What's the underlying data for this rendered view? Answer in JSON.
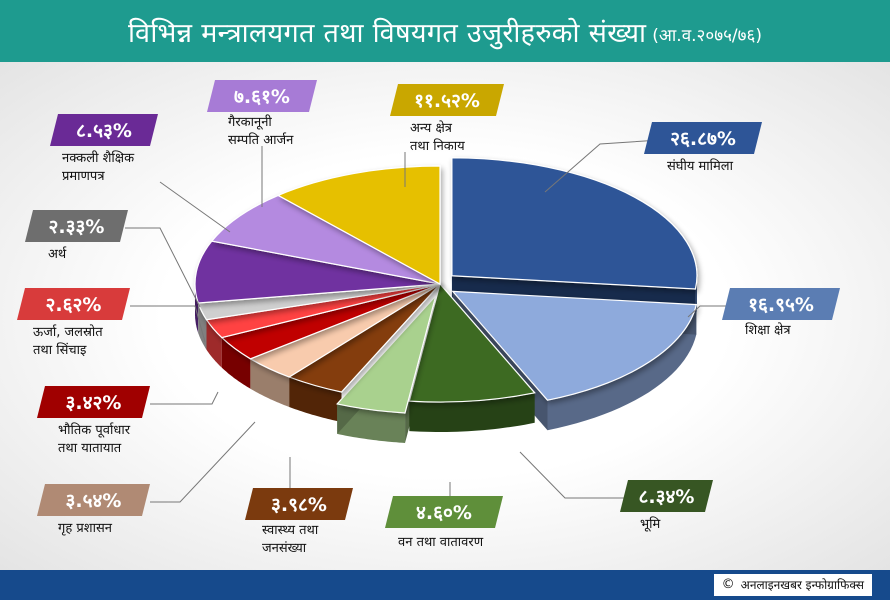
{
  "header": {
    "title": "विभिन्न मन्त्रालयगत तथा विषयगत उजुरीहरुको संख्या",
    "subtitle": "(आ.व.२०७५/७६)"
  },
  "footer": {
    "credit": "अनलाइनखबर इन्फोग्राफिक्स"
  },
  "colors": {
    "header_bg": "#1e9b8f",
    "footer_bg": "#164a8c"
  },
  "chart_data": {
    "type": "pie",
    "title": "विभिन्न मन्त्रालयगत तथा विषयगत उजुरीहरुको संख्या (आ.व.२०७५/७६)",
    "slices": [
      {
        "label": "संघीय मामिला",
        "label_lines": [
          "संघीय मामिला"
        ],
        "value": 26.87,
        "value_label": "२६.८७%",
        "color": "#2e5597",
        "exploded": true
      },
      {
        "label": "शिक्षा क्षेत्र",
        "label_lines": [
          "शिक्षा क्षेत्र"
        ],
        "value": 16.95,
        "value_label": "१६.९५%",
        "color": "#8eaadc",
        "exploded": true
      },
      {
        "label": "भूमि",
        "label_lines": [
          "भूमि"
        ],
        "value": 8.34,
        "value_label": "८.३४%",
        "color": "#3d6b23",
        "exploded": false
      },
      {
        "label": "वन तथा वातावरण",
        "label_lines": [
          "वन तथा वातावरण"
        ],
        "value": 4.6,
        "value_label": "४.६०%",
        "color": "#a9d18e",
        "exploded": true
      },
      {
        "label": "स्वास्थ्य तथा जनसंख्या",
        "label_lines": [
          "स्वास्थ्य तथा",
          "जनसंख्या"
        ],
        "value": 3.98,
        "value_label": "३.९८%",
        "color": "#843c0c",
        "exploded": false
      },
      {
        "label": "गृह प्रशासन",
        "label_lines": [
          "गृह प्रशासन"
        ],
        "value": 3.54,
        "value_label": "३.५४%",
        "color": "#f8cbad",
        "exploded": false
      },
      {
        "label": "भौतिक पूर्वाधार तथा यातायात",
        "label_lines": [
          "भौतिक पूर्वाधार",
          "तथा यातायात"
        ],
        "value": 3.42,
        "value_label": "३.४२%",
        "color": "#c00000",
        "exploded": false
      },
      {
        "label": "ऊर्जा, जलस्रोत तथा सिंचाइ",
        "label_lines": [
          "ऊर्जा, जलस्रोत",
          "तथा सिंचाइ"
        ],
        "value": 2.62,
        "value_label": "२.६२%",
        "color": "#ff4343",
        "exploded": false
      },
      {
        "label": "अर्थ",
        "label_lines": [
          "अर्थ"
        ],
        "value": 2.33,
        "value_label": "२.३३%",
        "color": "#cfcfcf",
        "exploded": false
      },
      {
        "label": "नक्कली शैक्षिक प्रमाणपत्र",
        "label_lines": [
          "नक्कली शैक्षिक",
          "प्रमाणपत्र"
        ],
        "value": 8.53,
        "value_label": "८.५३%",
        "color": "#7030a0",
        "exploded": false
      },
      {
        "label": "गैरकानूनी सम्पति आर्जन",
        "label_lines": [
          "गैरकानूनी",
          "सम्पति आर्जन"
        ],
        "value": 7.61,
        "value_label": "७.६१%",
        "color": "#b48ae0",
        "exploded": false
      },
      {
        "label": "अन्य क्षेत्र तथा निकाय",
        "label_lines": [
          "अन्य क्षेत्र",
          "तथा निकाय"
        ],
        "value": 11.52,
        "value_label": "११.५२%",
        "color": "#e6c000",
        "exploded": false
      }
    ],
    "start": "top, clockwise",
    "label_box_colors": [
      "#2e5597",
      "#5b7db3",
      "#375623",
      "#5f8f3a",
      "#7b3a0e",
      "#b08a74",
      "#a00000",
      "#d83b3b",
      "#6e6e6e",
      "#6a2a96",
      "#a77bd6",
      "#c9a700"
    ]
  }
}
